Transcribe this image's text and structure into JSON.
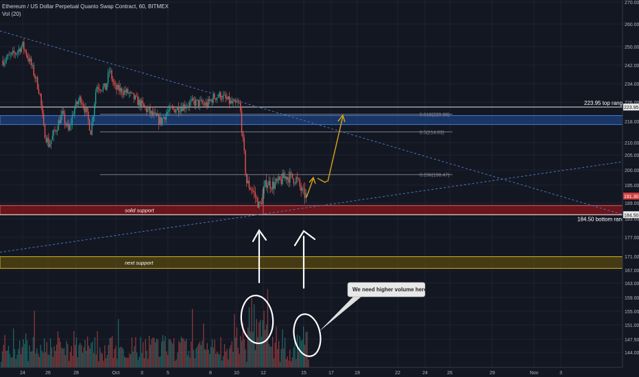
{
  "header": {
    "title": "Ethereum / US Dollar Perpetual Quanto Swap Contract, 60, BITMEX",
    "indicator": "Vol (20)"
  },
  "colors": {
    "background": "#131722",
    "grid": "#1f2330",
    "up": "#26a69a",
    "down": "#ef5350",
    "support_zone": "#c62828",
    "top_zone": "#1e4e9c",
    "next_zone": "#a88a10",
    "trendline": "#4a78c8",
    "arrow_gold": "#d4a017",
    "fib": "#7c7f88"
  },
  "chart_data": {
    "type": "candlestick",
    "y_range": [
      141,
      272
    ],
    "y_ticks": [
      "270.00",
      "260.00",
      "250.00",
      "242.00",
      "234.00",
      "226.00",
      "218.00",
      "210.00",
      "205.00",
      "200.00",
      "195.00",
      "189.00",
      "183.00",
      "177.00",
      "171.00",
      "167.00",
      "163.00",
      "159.00",
      "155.00",
      "151.00",
      "147.50",
      "144.00"
    ],
    "x_ticks": [
      "24",
      "26",
      "28",
      "Oct",
      "3",
      "5",
      "8",
      "10",
      "12",
      "15",
      "17",
      "19",
      "22",
      "24",
      "26",
      "29",
      "Nov",
      "3"
    ],
    "price_labels": [
      {
        "text": "223.95",
        "value": 223.95
      },
      {
        "text": "191.30",
        "value": 191.3
      },
      {
        "text": "184.50",
        "value": 184.5
      }
    ],
    "levels": [
      {
        "text": "223.95 top range",
        "value": 223.95
      },
      {
        "text": "184.50 bottom range",
        "value": 184.5
      }
    ],
    "fib_levels": [
      {
        "text": "0.618(220.98)",
        "value": 220.98
      },
      {
        "text": "0.5(214.03)",
        "value": 214.03
      },
      {
        "text": "0.236(198.47)",
        "value": 198.47
      }
    ],
    "zones": [
      {
        "name": "top",
        "label": "",
        "from": 216.8,
        "to": 220.4
      },
      {
        "name": "support",
        "label": "solid support",
        "from": 184.5,
        "to": 188.0
      },
      {
        "name": "next",
        "label": "next support",
        "from": 167.5,
        "to": 170.9
      }
    ],
    "callout": "We need higher volume here.",
    "anchor_prices": [
      {
        "day": 22.5,
        "price": 244
      },
      {
        "day": 23.4,
        "price": 247
      },
      {
        "day": 24.0,
        "price": 250.5
      },
      {
        "day": 24.6,
        "price": 243
      },
      {
        "day": 25.0,
        "price": 236
      },
      {
        "day": 25.3,
        "price": 230
      },
      {
        "day": 25.6,
        "price": 215
      },
      {
        "day": 26.0,
        "price": 209
      },
      {
        "day": 26.6,
        "price": 216
      },
      {
        "day": 27.0,
        "price": 221
      },
      {
        "day": 27.5,
        "price": 214
      },
      {
        "day": 27.9,
        "price": 223
      },
      {
        "day": 28.4,
        "price": 228
      },
      {
        "day": 28.8,
        "price": 222
      },
      {
        "day": 29.2,
        "price": 214
      },
      {
        "day": 29.6,
        "price": 233
      },
      {
        "day": 30.3,
        "price": 232
      },
      {
        "day": 30.6,
        "price": 240
      },
      {
        "day": 31.0,
        "price": 232
      },
      {
        "day": 32.0,
        "price": 230
      },
      {
        "day": 33.0,
        "price": 225
      },
      {
        "day": 34.0,
        "price": 220
      },
      {
        "day": 34.5,
        "price": 218
      },
      {
        "day": 35.0,
        "price": 222
      },
      {
        "day": 36.0,
        "price": 224
      },
      {
        "day": 37.0,
        "price": 226
      },
      {
        "day": 38.0,
        "price": 225
      },
      {
        "day": 38.5,
        "price": 228
      },
      {
        "day": 39.0,
        "price": 229
      },
      {
        "day": 40.0,
        "price": 225
      },
      {
        "day": 40.5,
        "price": 225
      },
      {
        "day": 40.7,
        "price": 212
      },
      {
        "day": 41.0,
        "price": 196
      },
      {
        "day": 41.5,
        "price": 193
      },
      {
        "day": 42.0,
        "price": 187.5
      },
      {
        "day": 42.5,
        "price": 196
      },
      {
        "day": 43.0,
        "price": 195
      },
      {
        "day": 43.5,
        "price": 196
      },
      {
        "day": 44.0,
        "price": 198
      },
      {
        "day": 44.8,
        "price": 197
      },
      {
        "day": 45.3,
        "price": 192
      },
      {
        "day": 45.6,
        "price": 191.3
      }
    ]
  }
}
